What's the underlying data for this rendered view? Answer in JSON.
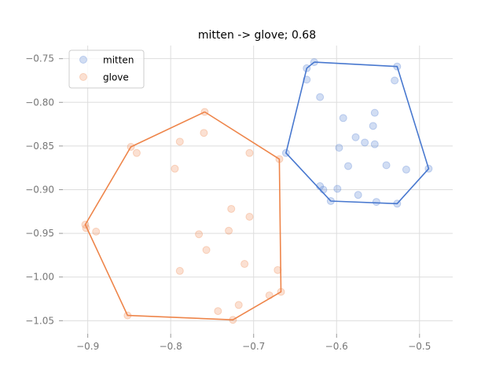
{
  "chart_data": {
    "type": "scatter",
    "title": "mitten -> glove; 0.68",
    "xlabel": "",
    "ylabel": "",
    "xlim": [
      -0.93,
      -0.46
    ],
    "ylim": [
      -1.065,
      -0.735
    ],
    "xticks": [
      -0.9,
      -0.8,
      -0.7,
      -0.6,
      -0.5
    ],
    "xtick_labels": [
      "−0.9",
      "−0.8",
      "−0.7",
      "−0.6",
      "−0.5"
    ],
    "yticks": [
      -0.75,
      -0.8,
      -0.85,
      -0.9,
      -0.95,
      -1.0,
      -1.05
    ],
    "ytick_labels": [
      "−0.75",
      "−0.80",
      "−0.85",
      "−0.90",
      "−0.95",
      "−1.00",
      "−1.05"
    ],
    "grid": true,
    "legend_position": "upper-left",
    "series": [
      {
        "name": "mitten",
        "color": "#4878cf",
        "points": [
          [
            -0.627,
            -0.754
          ],
          [
            -0.636,
            -0.761
          ],
          [
            -0.636,
            -0.774
          ],
          [
            -0.527,
            -0.759
          ],
          [
            -0.53,
            -0.775
          ],
          [
            -0.62,
            -0.794
          ],
          [
            -0.554,
            -0.812
          ],
          [
            -0.592,
            -0.818
          ],
          [
            -0.556,
            -0.827
          ],
          [
            -0.577,
            -0.84
          ],
          [
            -0.566,
            -0.846
          ],
          [
            -0.554,
            -0.848
          ],
          [
            -0.597,
            -0.852
          ],
          [
            -0.661,
            -0.858
          ],
          [
            -0.586,
            -0.873
          ],
          [
            -0.54,
            -0.872
          ],
          [
            -0.516,
            -0.877
          ],
          [
            -0.489,
            -0.876
          ],
          [
            -0.62,
            -0.896
          ],
          [
            -0.616,
            -0.9
          ],
          [
            -0.599,
            -0.899
          ],
          [
            -0.574,
            -0.906
          ],
          [
            -0.607,
            -0.913
          ],
          [
            -0.552,
            -0.914
          ],
          [
            -0.527,
            -0.916
          ]
        ],
        "hull": [
          [
            -0.627,
            -0.754
          ],
          [
            -0.527,
            -0.759
          ],
          [
            -0.489,
            -0.876
          ],
          [
            -0.527,
            -0.916
          ],
          [
            -0.607,
            -0.913
          ],
          [
            -0.661,
            -0.858
          ],
          [
            -0.636,
            -0.761
          ]
        ]
      },
      {
        "name": "glove",
        "color": "#ee854a",
        "points": [
          [
            -0.759,
            -0.811
          ],
          [
            -0.76,
            -0.835
          ],
          [
            -0.789,
            -0.845
          ],
          [
            -0.848,
            -0.851
          ],
          [
            -0.841,
            -0.858
          ],
          [
            -0.705,
            -0.858
          ],
          [
            -0.669,
            -0.865
          ],
          [
            -0.795,
            -0.876
          ],
          [
            -0.727,
            -0.922
          ],
          [
            -0.705,
            -0.931
          ],
          [
            -0.903,
            -0.94
          ],
          [
            -0.902,
            -0.944
          ],
          [
            -0.89,
            -0.948
          ],
          [
            -0.73,
            -0.947
          ],
          [
            -0.766,
            -0.951
          ],
          [
            -0.757,
            -0.969
          ],
          [
            -0.711,
            -0.985
          ],
          [
            -0.789,
            -0.993
          ],
          [
            -0.671,
            -0.992
          ],
          [
            -0.667,
            -1.017
          ],
          [
            -0.681,
            -1.021
          ],
          [
            -0.718,
            -1.032
          ],
          [
            -0.743,
            -1.039
          ],
          [
            -0.852,
            -1.044
          ],
          [
            -0.725,
            -1.049
          ]
        ],
        "hull": [
          [
            -0.759,
            -0.811
          ],
          [
            -0.669,
            -0.865
          ],
          [
            -0.667,
            -1.017
          ],
          [
            -0.725,
            -1.049
          ],
          [
            -0.852,
            -1.044
          ],
          [
            -0.903,
            -0.94
          ],
          [
            -0.848,
            -0.851
          ]
        ]
      }
    ]
  }
}
